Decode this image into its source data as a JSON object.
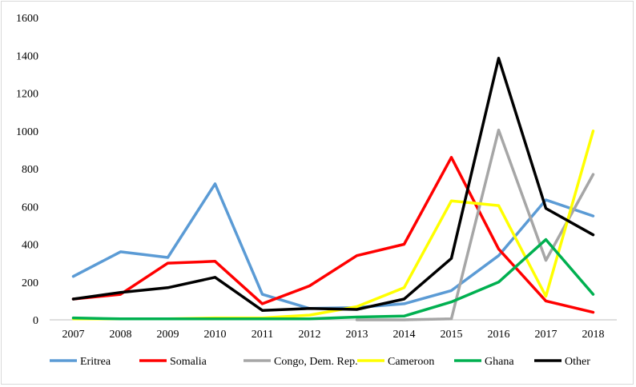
{
  "chart_data": {
    "type": "line",
    "title": "",
    "xlabel": "",
    "ylabel": "",
    "categories": [
      "2007",
      "2008",
      "2009",
      "2010",
      "2011",
      "2012",
      "2013",
      "2014",
      "2015",
      "2016",
      "2017",
      "2018"
    ],
    "ylim": [
      0,
      1600
    ],
    "yticks": [
      0,
      200,
      400,
      600,
      800,
      1000,
      1200,
      1400,
      1600
    ],
    "grid": false,
    "legend_position": "bottom",
    "series": [
      {
        "name": "Eritrea",
        "color": "#5b9bd5",
        "values": [
          230,
          360,
          330,
          720,
          135,
          60,
          65,
          85,
          155,
          340,
          635,
          550
        ]
      },
      {
        "name": "Somalia",
        "color": "#ff0000",
        "values": [
          110,
          135,
          300,
          310,
          85,
          180,
          340,
          400,
          860,
          375,
          100,
          40
        ]
      },
      {
        "name": "Congo, Dem. Rep.",
        "color": "#a6a6a6",
        "values": [
          null,
          null,
          null,
          null,
          null,
          null,
          0,
          0,
          5,
          1005,
          315,
          770
        ]
      },
      {
        "name": "Cameroon",
        "color": "#ffff00",
        "values": [
          5,
          5,
          5,
          10,
          10,
          25,
          70,
          170,
          630,
          605,
          125,
          1000
        ]
      },
      {
        "name": "Ghana",
        "color": "#00b050",
        "values": [
          10,
          5,
          5,
          5,
          5,
          5,
          15,
          20,
          95,
          200,
          425,
          135
        ]
      },
      {
        "name": "Other",
        "color": "#000000",
        "values": [
          110,
          145,
          170,
          225,
          50,
          60,
          55,
          110,
          325,
          1385,
          590,
          450
        ]
      }
    ]
  }
}
